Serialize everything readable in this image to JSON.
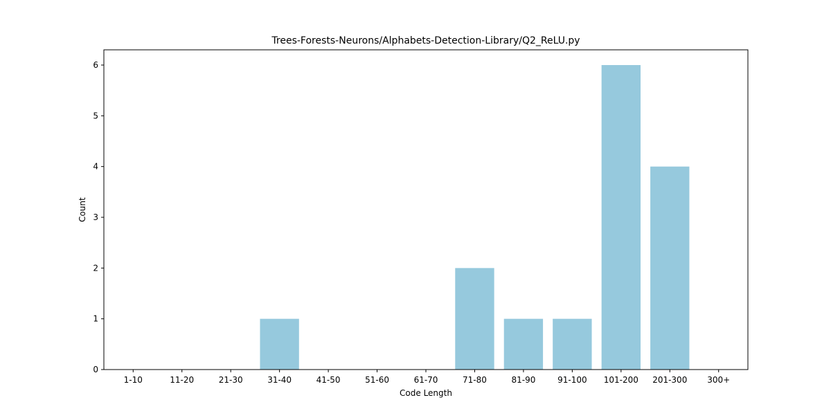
{
  "chart_data": {
    "type": "bar",
    "title": "Trees-Forests-Neurons/Alphabets-Detection-Library/Q2_ReLU.py",
    "xlabel": "Code Length",
    "ylabel": "Count",
    "categories": [
      "1-10",
      "11-20",
      "21-30",
      "31-40",
      "41-50",
      "51-60",
      "61-70",
      "71-80",
      "81-90",
      "91-100",
      "101-200",
      "201-300",
      "300+"
    ],
    "values": [
      0,
      0,
      0,
      1,
      0,
      0,
      0,
      2,
      1,
      1,
      6,
      4,
      0
    ],
    "ylim": [
      0,
      6.3
    ],
    "yticks": [
      0,
      1,
      2,
      3,
      4,
      5,
      6
    ],
    "bar_color": "#96c9dd",
    "grid": false,
    "legend": "none"
  }
}
